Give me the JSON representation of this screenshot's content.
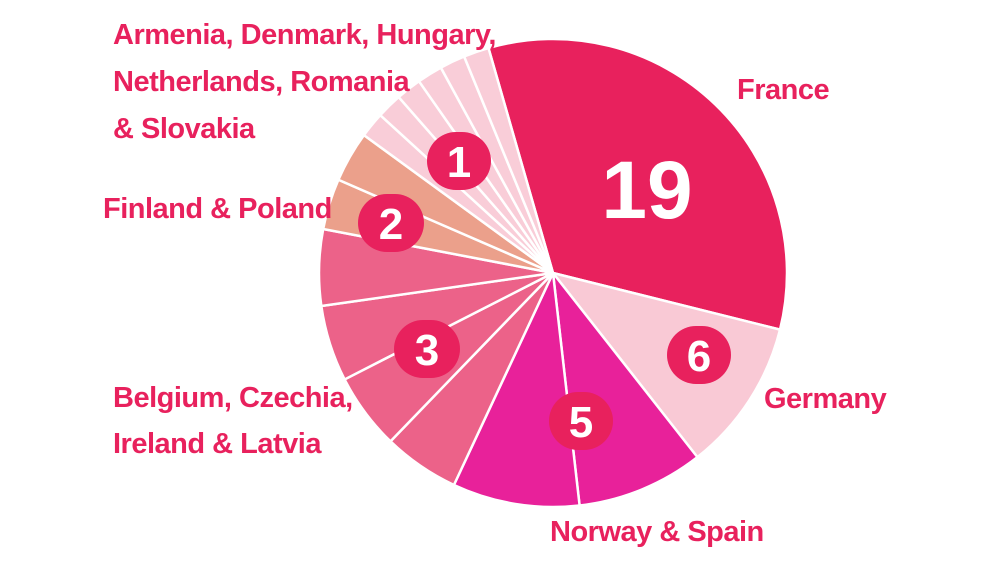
{
  "chart_data": {
    "type": "pie",
    "slices": [
      {
        "label": "France",
        "value": 19,
        "color": "#e8215d"
      },
      {
        "label": "Germany",
        "value": 6,
        "color": "#f9c9d5"
      },
      {
        "label": "Norway",
        "value": 5,
        "color": "#e8219a"
      },
      {
        "label": "Spain",
        "value": 5,
        "color": "#e8219a"
      },
      {
        "label": "Belgium",
        "value": 3,
        "color": "#ec6289"
      },
      {
        "label": "Czechia",
        "value": 3,
        "color": "#ec6289"
      },
      {
        "label": "Ireland",
        "value": 3,
        "color": "#ec6289"
      },
      {
        "label": "Latvia",
        "value": 3,
        "color": "#ec6289"
      },
      {
        "label": "Finland",
        "value": 2,
        "color": "#eba08b"
      },
      {
        "label": "Poland",
        "value": 2,
        "color": "#eba08b"
      },
      {
        "label": "Armenia",
        "value": 1,
        "color": "#f9cdd8"
      },
      {
        "label": "Denmark",
        "value": 1,
        "color": "#f9cdd8"
      },
      {
        "label": "Hungary",
        "value": 1,
        "color": "#f9cdd8"
      },
      {
        "label": "Netherlands",
        "value": 1,
        "color": "#f9cdd8"
      },
      {
        "label": "Romania",
        "value": 1,
        "color": "#f9cdd8"
      },
      {
        "label": "Slovakia",
        "value": 1,
        "color": "#f9cdd8"
      }
    ],
    "value_badges": {
      "france": "19",
      "germany": "6",
      "norway_spain": "5",
      "belgium_group": "3",
      "finland_poland": "2",
      "small_group": "1"
    },
    "group_labels": {
      "france": "France",
      "germany": "Germany",
      "norway_spain": "Norway & Spain",
      "belgium_line1": "Belgium, Czechia,",
      "belgium_line2": "Ireland & Latvia",
      "finland_poland": "Finland & Poland",
      "small_line1": "Armenia, Denmark, Hungary,",
      "small_line2": "Netherlands, Romania",
      "small_line3": "& Slovakia"
    }
  }
}
